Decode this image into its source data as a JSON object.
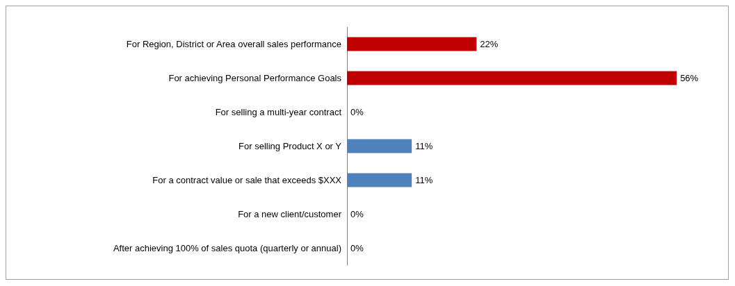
{
  "chart_data": {
    "type": "bar",
    "orientation": "horizontal",
    "categories": [
      "For Region, District or Area overall sales performance",
      "For achieving Personal Performance Goals",
      "For selling a multi-year contract",
      "For selling Product X or Y",
      "For a contract value or sale that exceeds $XXX",
      "For a new client/customer",
      "After achieving 100% of sales quota (quarterly or annual)"
    ],
    "values": [
      22,
      56,
      0,
      11,
      11,
      0,
      0
    ],
    "colors": [
      "#c00000",
      "#c00000",
      "#4f81bd",
      "#4f81bd",
      "#4f81bd",
      "#4f81bd",
      "#4f81bd"
    ],
    "value_labels": [
      "22%",
      "56%",
      "0%",
      "11%",
      "11%",
      "0%",
      "0%"
    ],
    "grid": false
  }
}
